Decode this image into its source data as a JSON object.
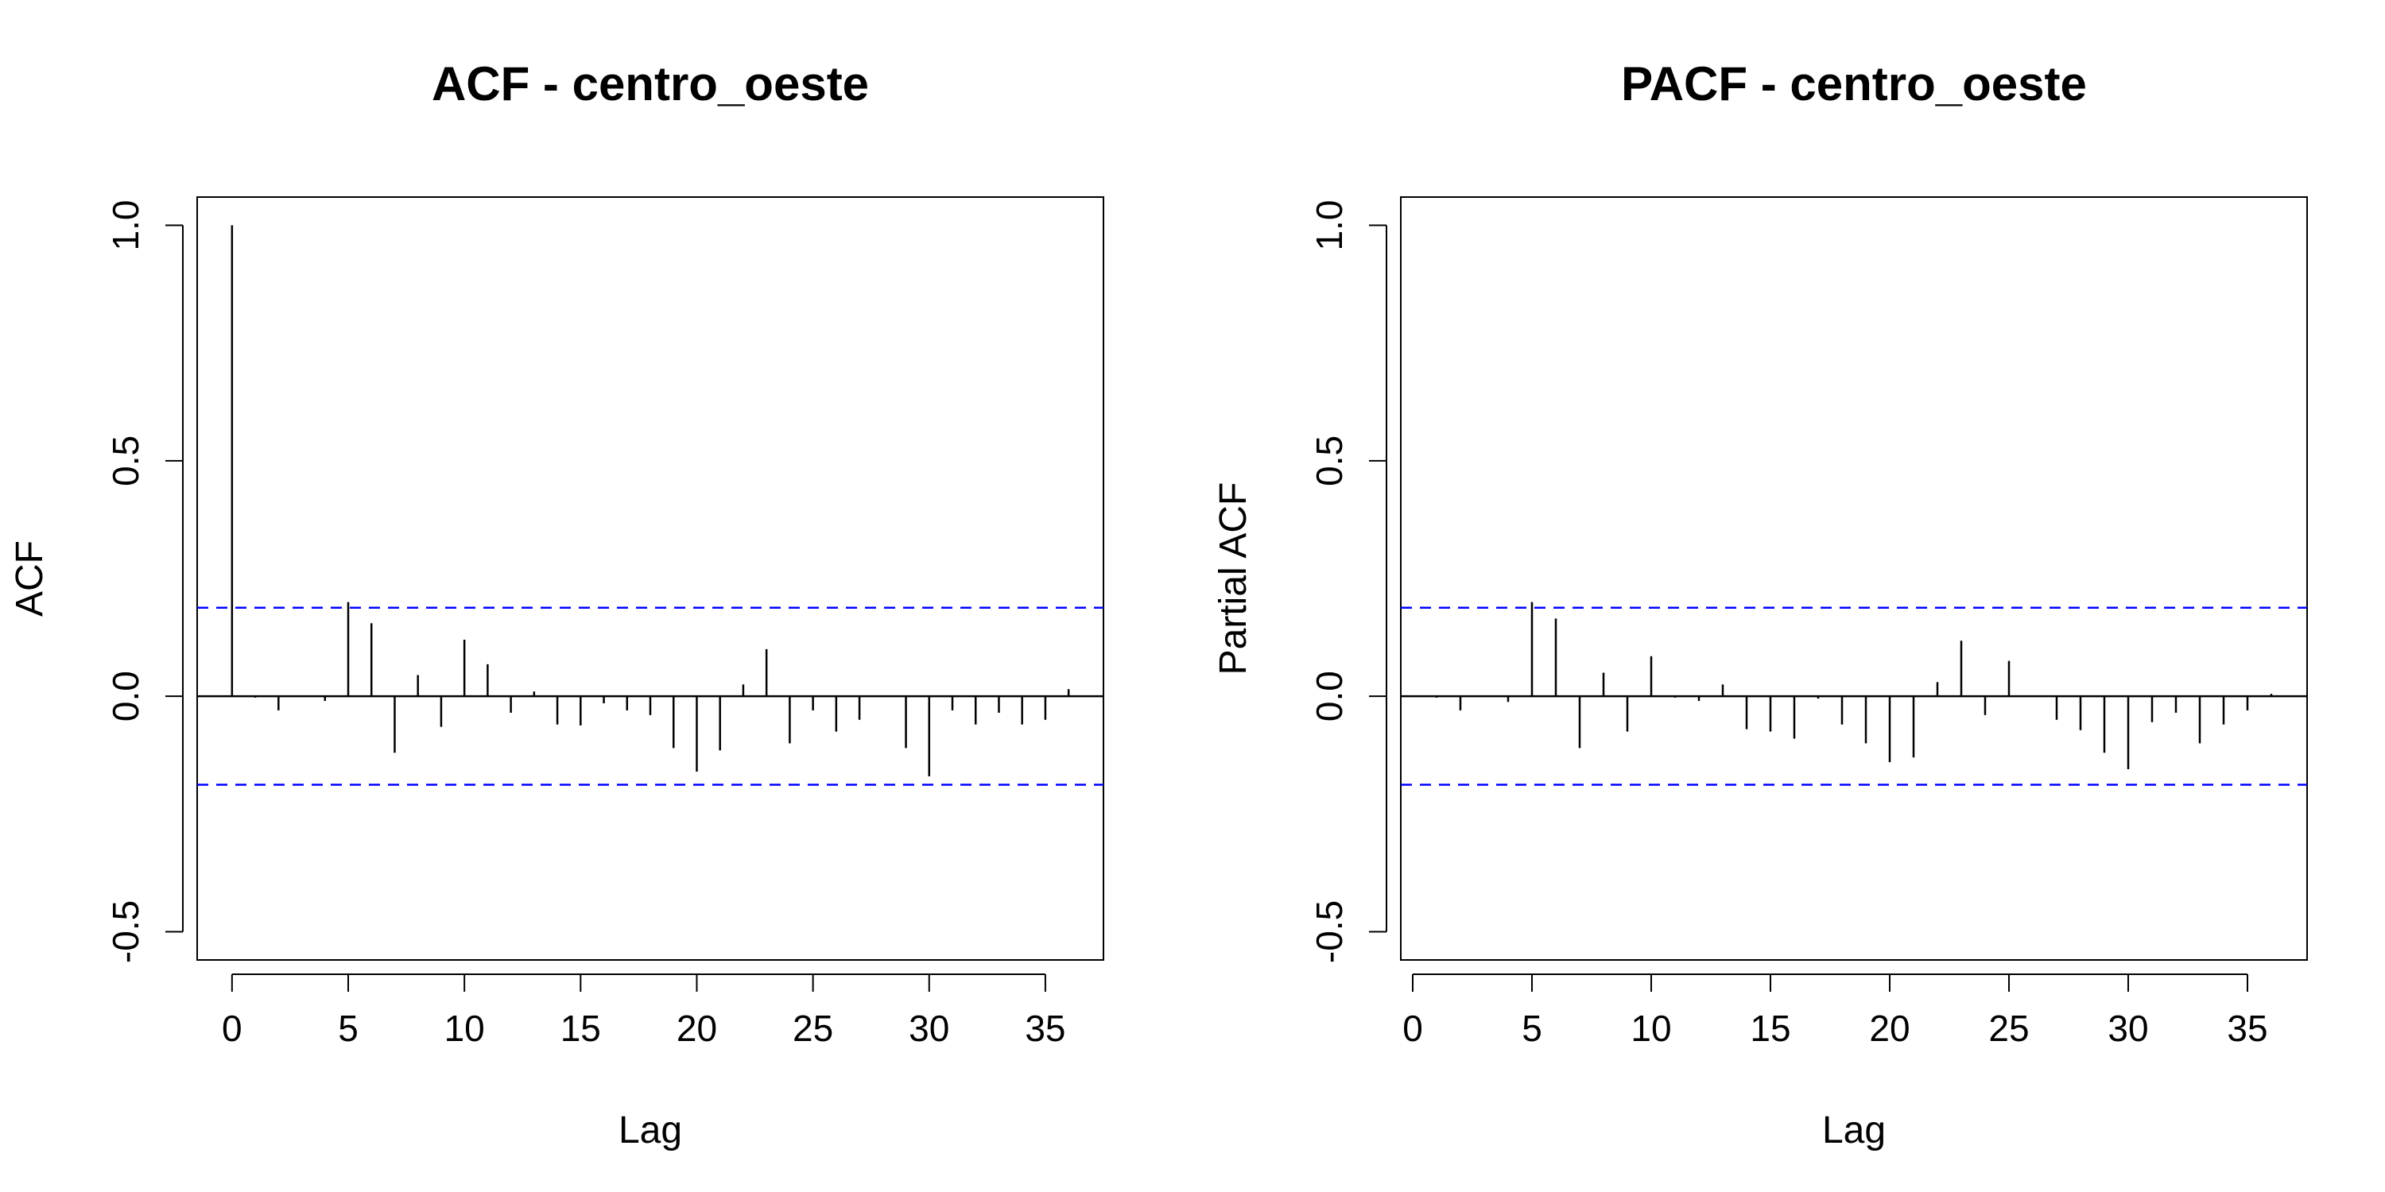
{
  "chart_data": [
    {
      "type": "bar",
      "title": "ACF - centro_oeste",
      "xlabel": "Lag",
      "ylabel": "ACF",
      "xlim": [
        -1.5,
        37.5
      ],
      "ylim": [
        -0.56,
        1.06
      ],
      "xticks": [
        0,
        5,
        10,
        15,
        20,
        25,
        30,
        35
      ],
      "yticks": [
        -0.5,
        0.0,
        0.5,
        1.0
      ],
      "ytick_labels": [
        "-0.5",
        "0.0",
        "0.5",
        "1.0"
      ],
      "confidence_bound": 0.188,
      "lags": [
        0,
        1,
        2,
        3,
        4,
        5,
        6,
        7,
        8,
        9,
        10,
        11,
        12,
        13,
        14,
        15,
        16,
        17,
        18,
        19,
        20,
        21,
        22,
        23,
        24,
        25,
        26,
        27,
        28,
        29,
        30,
        31,
        32,
        33,
        34,
        35,
        36
      ],
      "values": [
        1.0,
        -0.003,
        -0.03,
        0.0,
        -0.01,
        0.2,
        0.155,
        -0.12,
        0.045,
        -0.065,
        0.12,
        0.068,
        -0.035,
        0.01,
        -0.06,
        -0.062,
        -0.015,
        -0.03,
        -0.04,
        -0.11,
        -0.16,
        -0.115,
        0.025,
        0.1,
        -0.1,
        -0.03,
        -0.075,
        -0.05,
        0.0,
        -0.11,
        -0.17,
        -0.03,
        -0.06,
        -0.035,
        -0.06,
        -0.05,
        0.015
      ],
      "bound_color": "#0000ff",
      "line_color": "#000000"
    },
    {
      "type": "bar",
      "title": "PACF - centro_oeste",
      "xlabel": "Lag",
      "ylabel": "Partial ACF",
      "xlim": [
        -0.5,
        37.5
      ],
      "ylim": [
        -0.56,
        1.06
      ],
      "xticks": [
        0,
        5,
        10,
        15,
        20,
        25,
        30,
        35
      ],
      "yticks": [
        -0.5,
        0.0,
        0.5,
        1.0
      ],
      "ytick_labels": [
        "-0.5",
        "0.0",
        "0.5",
        "1.0"
      ],
      "confidence_bound": 0.188,
      "lags": [
        1,
        2,
        3,
        4,
        5,
        6,
        7,
        8,
        9,
        10,
        11,
        12,
        13,
        14,
        15,
        16,
        17,
        18,
        19,
        20,
        21,
        22,
        23,
        24,
        25,
        26,
        27,
        28,
        29,
        30,
        31,
        32,
        33,
        34,
        35,
        36
      ],
      "values": [
        -0.003,
        -0.03,
        0.0,
        -0.012,
        0.2,
        0.165,
        -0.11,
        0.05,
        -0.075,
        0.085,
        -0.003,
        -0.01,
        0.025,
        -0.07,
        -0.075,
        -0.09,
        -0.005,
        -0.06,
        -0.1,
        -0.14,
        -0.13,
        0.03,
        0.118,
        -0.04,
        0.075,
        0.0,
        -0.05,
        -0.072,
        -0.12,
        -0.155,
        -0.055,
        -0.035,
        -0.1,
        -0.06,
        -0.03,
        0.005
      ],
      "bound_color": "#0000ff",
      "line_color": "#000000"
    }
  ]
}
